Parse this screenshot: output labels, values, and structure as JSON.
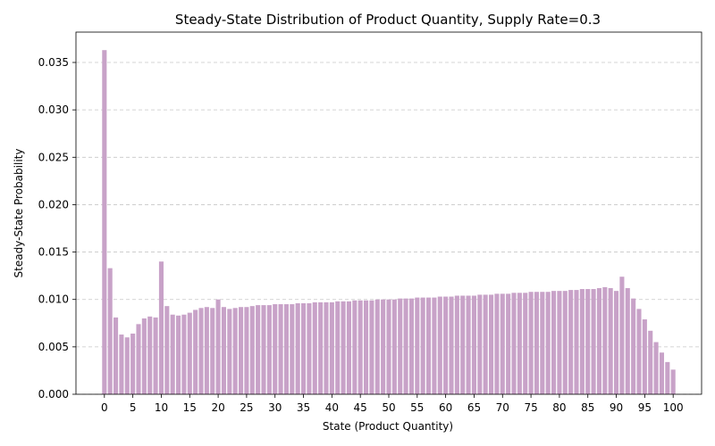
{
  "chart_data": {
    "type": "bar",
    "title": "Steady-State Distribution of Product Quantity, Supply Rate=0.3",
    "xlabel": "State (Product Quantity)",
    "ylabel": "Steady-State Probability",
    "x_ticks": [
      "0",
      "5",
      "10",
      "15",
      "20",
      "25",
      "30",
      "35",
      "40",
      "45",
      "50",
      "55",
      "60",
      "65",
      "70",
      "75",
      "80",
      "85",
      "90",
      "95",
      "100"
    ],
    "y_ticks": [
      "0.000",
      "0.005",
      "0.010",
      "0.015",
      "0.020",
      "0.025",
      "0.030",
      "0.035"
    ],
    "ylim": [
      0,
      0.0382
    ],
    "xlim": [
      -5,
      105
    ],
    "grid": "y-dashed",
    "bar_color": "#c8a2c8",
    "categories": [
      0,
      1,
      2,
      3,
      4,
      5,
      6,
      7,
      8,
      9,
      10,
      11,
      12,
      13,
      14,
      15,
      16,
      17,
      18,
      19,
      20,
      21,
      22,
      23,
      24,
      25,
      26,
      27,
      28,
      29,
      30,
      31,
      32,
      33,
      34,
      35,
      36,
      37,
      38,
      39,
      40,
      41,
      42,
      43,
      44,
      45,
      46,
      47,
      48,
      49,
      50,
      51,
      52,
      53,
      54,
      55,
      56,
      57,
      58,
      59,
      60,
      61,
      62,
      63,
      64,
      65,
      66,
      67,
      68,
      69,
      70,
      71,
      72,
      73,
      74,
      75,
      76,
      77,
      78,
      79,
      80,
      81,
      82,
      83,
      84,
      85,
      86,
      87,
      88,
      89,
      90,
      91,
      92,
      93,
      94,
      95,
      96,
      97,
      98,
      99,
      100
    ],
    "values": [
      0.0363,
      0.0133,
      0.0081,
      0.0063,
      0.006,
      0.0064,
      0.0074,
      0.008,
      0.0082,
      0.0081,
      0.014,
      0.0093,
      0.0084,
      0.0083,
      0.0084,
      0.0086,
      0.0089,
      0.0091,
      0.0092,
      0.0091,
      0.01,
      0.0092,
      0.009,
      0.0091,
      0.0092,
      0.0092,
      0.0093,
      0.0094,
      0.0094,
      0.0094,
      0.0095,
      0.0095,
      0.0095,
      0.0095,
      0.0096,
      0.0096,
      0.0096,
      0.0097,
      0.0097,
      0.0097,
      0.0097,
      0.0098,
      0.0098,
      0.0098,
      0.0099,
      0.0099,
      0.0099,
      0.0099,
      0.01,
      0.01,
      0.01,
      0.01,
      0.0101,
      0.0101,
      0.0101,
      0.0102,
      0.0102,
      0.0102,
      0.0102,
      0.0103,
      0.0103,
      0.0103,
      0.0104,
      0.0104,
      0.0104,
      0.0104,
      0.0105,
      0.0105,
      0.0105,
      0.0106,
      0.0106,
      0.0106,
      0.0107,
      0.0107,
      0.0107,
      0.0108,
      0.0108,
      0.0108,
      0.0108,
      0.0109,
      0.0109,
      0.0109,
      0.011,
      0.011,
      0.0111,
      0.0111,
      0.0111,
      0.0112,
      0.0113,
      0.0112,
      0.0109,
      0.0124,
      0.0112,
      0.0101,
      0.009,
      0.0079,
      0.0067,
      0.0055,
      0.0044,
      0.0034,
      0.0026
    ]
  }
}
